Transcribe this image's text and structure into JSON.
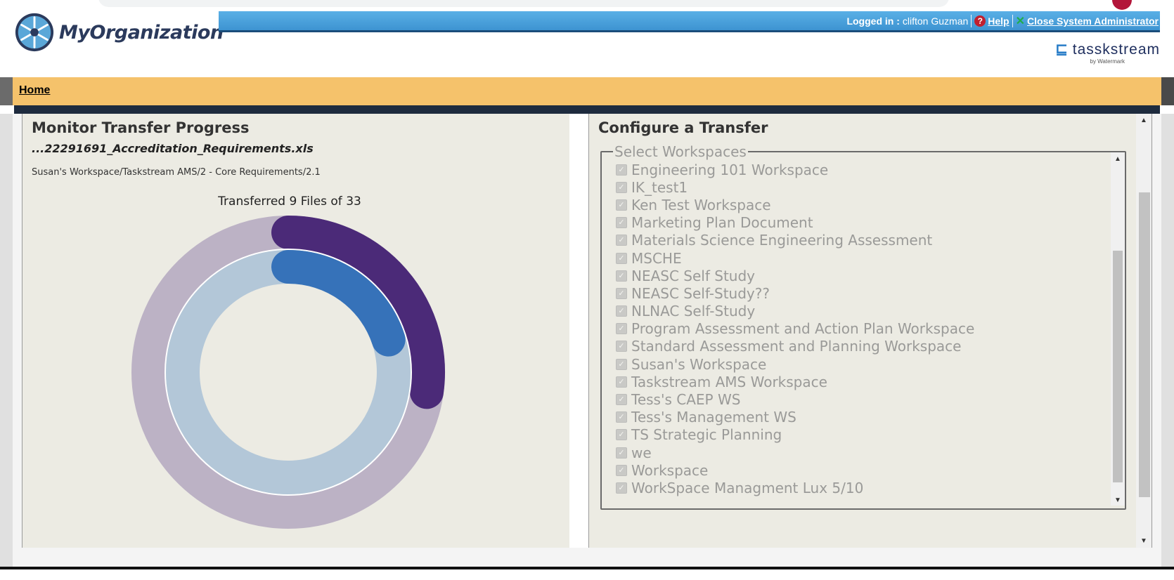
{
  "header": {
    "logo_text": "MyOrganization",
    "logged_in_label": "Logged in :",
    "user_name": "clifton Guzman",
    "help_label": "Help",
    "close_admin_label": "Close System Administrator",
    "brand_name": "tasskstream",
    "brand_byline": "by Watermark"
  },
  "nav": {
    "home_label": "Home"
  },
  "monitor": {
    "title": "Monitor Transfer Progress",
    "filename": "...22291691_Accreditation_Requirements.xls",
    "path": "Susan's Workspace/Taskstream AMS/2 - Core Requirements/2.1",
    "progress_text": "Transferred 9 Files of 33",
    "files_transferred": 9,
    "files_total": 33,
    "file_progress_fraction": 0.2,
    "colors": {
      "outer_track": "#bcb2c5",
      "outer_fill": "#4b2a78",
      "inner_track": "#b3c7d8",
      "inner_fill": "#3672b9"
    }
  },
  "configure": {
    "title": "Configure a Transfer",
    "group_label": "Select Workspaces",
    "workspaces": [
      "Engineering 101 Workspace",
      "IK_test1",
      "Ken Test Workspace",
      "Marketing Plan Document",
      "Materials Science Engineering Assessment",
      "MSCHE",
      "NEASC Self Study",
      "NEASC Self-Study??",
      "NLNAC Self-Study",
      "Program Assessment and Action Plan Workspace",
      "Standard Assessment and Planning Workspace",
      "Susan's Workspace",
      "Taskstream AMS Workspace",
      "Tess's CAEP WS",
      "Tess's Management WS",
      "TS Strategic Planning",
      "we",
      "Workspace",
      "WorkSpace Managment Lux 5/10"
    ]
  }
}
